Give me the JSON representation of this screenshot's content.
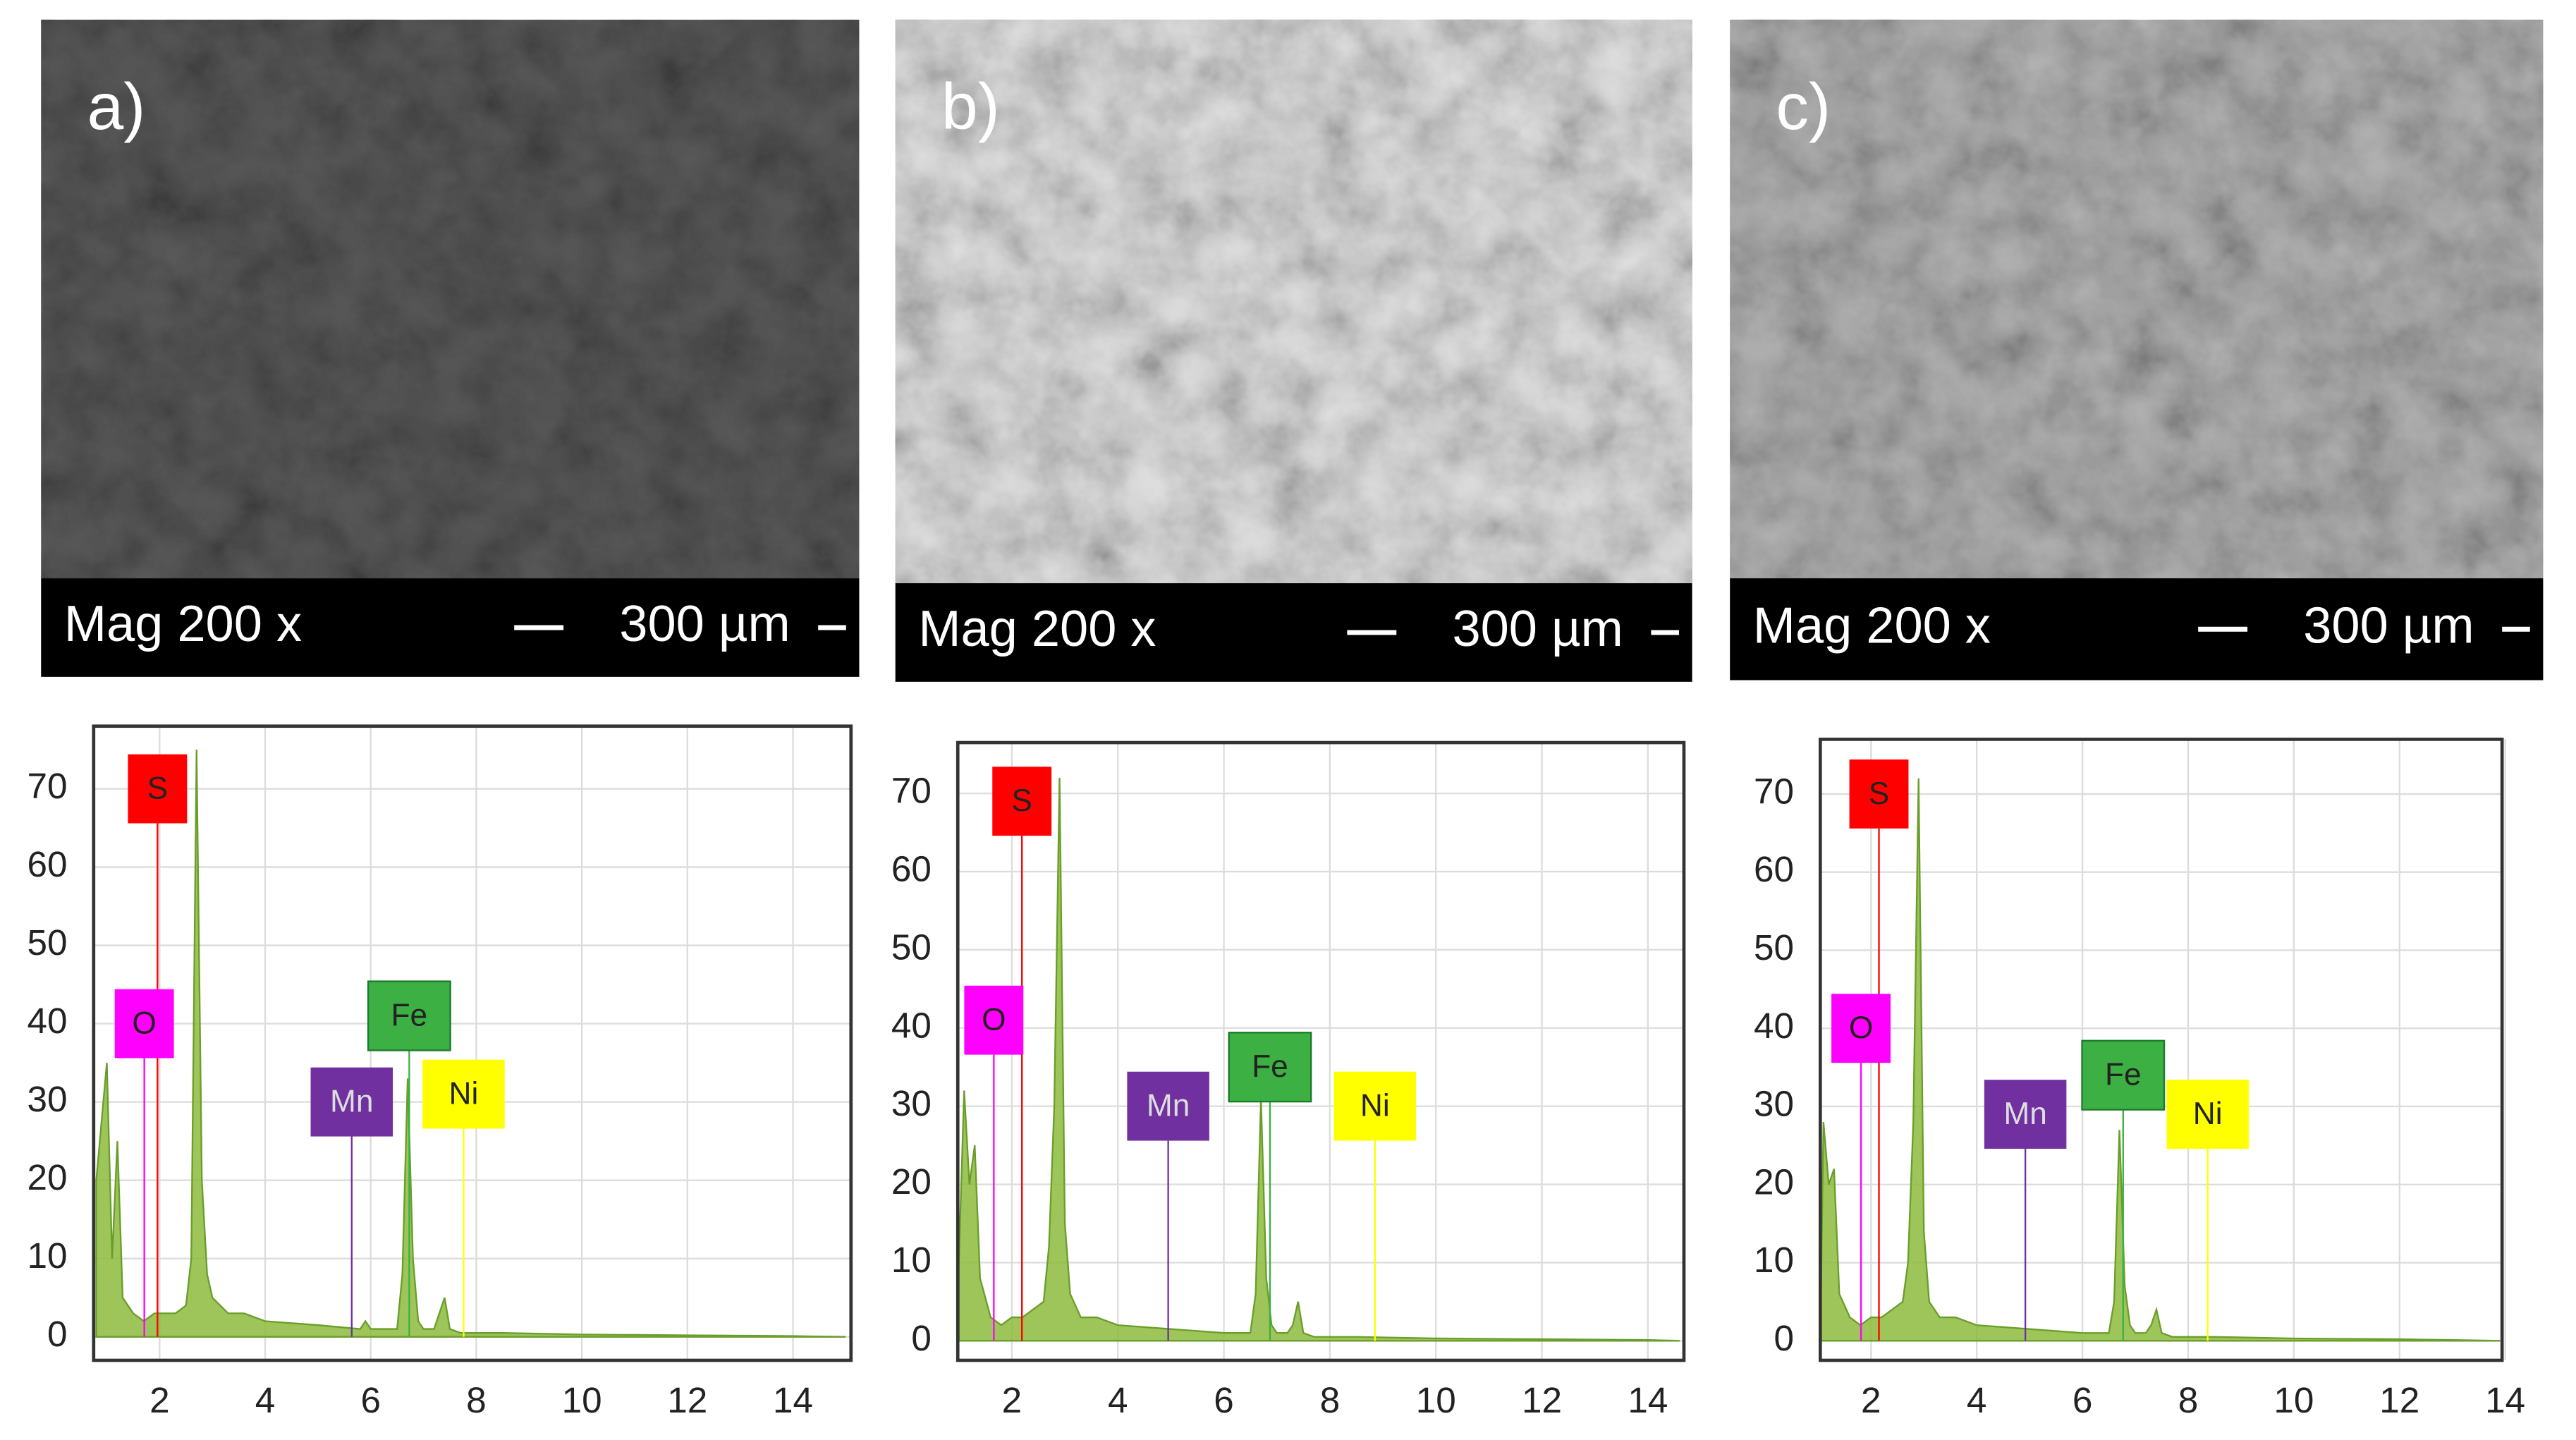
{
  "chart_data": [
    {
      "type": "area",
      "panel_label": "a)",
      "magnification": "Mag 200 x",
      "scale_bar": "300 µm",
      "x": [
        0.8,
        1.0,
        1.1,
        1.2,
        1.3,
        1.5,
        1.7,
        1.9,
        2.1,
        2.3,
        2.5,
        2.6,
        2.7,
        2.8,
        2.9,
        3.0,
        3.3,
        3.6,
        4.0,
        5.0,
        5.8,
        5.9,
        6.0,
        6.3,
        6.5,
        6.6,
        6.7,
        6.8,
        6.9,
        7.0,
        7.2,
        7.3,
        7.4,
        7.5,
        7.7,
        8.5,
        10,
        12,
        14,
        15
      ],
      "values": [
        20,
        35,
        10,
        25,
        5,
        3,
        2,
        3,
        3,
        3,
        4,
        10,
        75,
        20,
        8,
        5,
        3,
        3,
        2,
        1.5,
        1,
        2,
        1,
        1,
        1,
        8,
        33,
        10,
        2,
        1,
        1,
        3,
        5,
        1,
        0.5,
        0.5,
        0.3,
        0.2,
        0.1,
        0
      ],
      "color": "#8dbb3c",
      "xlim": [
        0.75,
        15.1
      ],
      "ylim": [
        -3,
        78
      ],
      "xticks": [
        2,
        4,
        6,
        8,
        10,
        12,
        14
      ],
      "yticks": [
        0,
        10,
        20,
        30,
        40,
        50,
        60,
        70
      ],
      "grid": true,
      "elements": [
        {
          "name": "S",
          "color": "#ff0000"
        },
        {
          "name": "O",
          "color": "#ff00ff"
        },
        {
          "name": "Fe",
          "color": "#3cb043"
        },
        {
          "name": "Mn",
          "color": "#7030a0"
        },
        {
          "name": "Ni",
          "color": "#ffff00"
        }
      ]
    },
    {
      "type": "area",
      "panel_label": "b)",
      "magnification": "Mag 200 x",
      "scale_bar": "300 µm",
      "x": [
        1.0,
        1.1,
        1.2,
        1.3,
        1.4,
        1.6,
        1.8,
        2.0,
        2.2,
        2.4,
        2.6,
        2.7,
        2.8,
        2.9,
        3.0,
        3.1,
        3.3,
        3.6,
        4.0,
        5.0,
        6.0,
        6.3,
        6.5,
        6.6,
        6.7,
        6.8,
        6.9,
        7.0,
        7.2,
        7.3,
        7.4,
        7.5,
        7.7,
        8.5,
        10,
        12,
        14,
        14.6
      ],
      "values": [
        10,
        32,
        20,
        25,
        8,
        3,
        2,
        3,
        3,
        4,
        5,
        12,
        30,
        72,
        15,
        6,
        3,
        3,
        2,
        1.5,
        1,
        1,
        1,
        6,
        31,
        8,
        2,
        1,
        1,
        2,
        5,
        1,
        0.5,
        0.5,
        0.3,
        0.2,
        0.1,
        0
      ],
      "color": "#8dbb3c",
      "xlim": [
        0.98,
        14.68
      ],
      "ylim": [
        -2.5,
        76.5
      ],
      "xticks": [
        2,
        4,
        6,
        8,
        10,
        12,
        14
      ],
      "yticks": [
        0,
        10,
        20,
        30,
        40,
        50,
        60,
        70
      ],
      "grid": true,
      "elements": [
        {
          "name": "S",
          "color": "#ff0000"
        },
        {
          "name": "O",
          "color": "#ff00ff"
        },
        {
          "name": "Fe",
          "color": "#3cb043"
        },
        {
          "name": "Mn",
          "color": "#7030a0"
        },
        {
          "name": "Ni",
          "color": "#ffff00"
        }
      ]
    },
    {
      "type": "area",
      "panel_label": "c)",
      "magnification": "Mag 200 x",
      "scale_bar": "300 µm",
      "x": [
        1.05,
        1.1,
        1.2,
        1.3,
        1.4,
        1.6,
        1.8,
        2.0,
        2.2,
        2.4,
        2.6,
        2.7,
        2.8,
        2.9,
        3.0,
        3.1,
        3.3,
        3.6,
        4.0,
        5.0,
        6.0,
        6.3,
        6.5,
        6.6,
        6.7,
        6.8,
        6.9,
        7.0,
        7.2,
        7.3,
        7.4,
        7.5,
        7.7,
        8.5,
        10,
        12,
        13,
        13.9
      ],
      "values": [
        5,
        28,
        20,
        22,
        6,
        3,
        2,
        3,
        3,
        4,
        5,
        10,
        28,
        72,
        14,
        5,
        3,
        3,
        2,
        1.5,
        1,
        1,
        1,
        5,
        27,
        7,
        2,
        1,
        1,
        2,
        4,
        1,
        0.5,
        0.5,
        0.3,
        0.2,
        0.1,
        0
      ],
      "color": "#8dbb3c",
      "xlim": [
        1.04,
        13.94
      ],
      "ylim": [
        -2.5,
        77
      ],
      "xticks": [
        2,
        4,
        6,
        8,
        10,
        12,
        14
      ],
      "yticks": [
        0,
        10,
        20,
        30,
        40,
        50,
        60,
        70
      ],
      "grid": true,
      "elements": [
        {
          "name": "S",
          "color": "#ff0000"
        },
        {
          "name": "O",
          "color": "#ff00ff"
        },
        {
          "name": "Fe",
          "color": "#3cb043"
        },
        {
          "name": "Mn",
          "color": "#7030a0"
        },
        {
          "name": "Ni",
          "color": "#ffff00"
        }
      ]
    }
  ]
}
